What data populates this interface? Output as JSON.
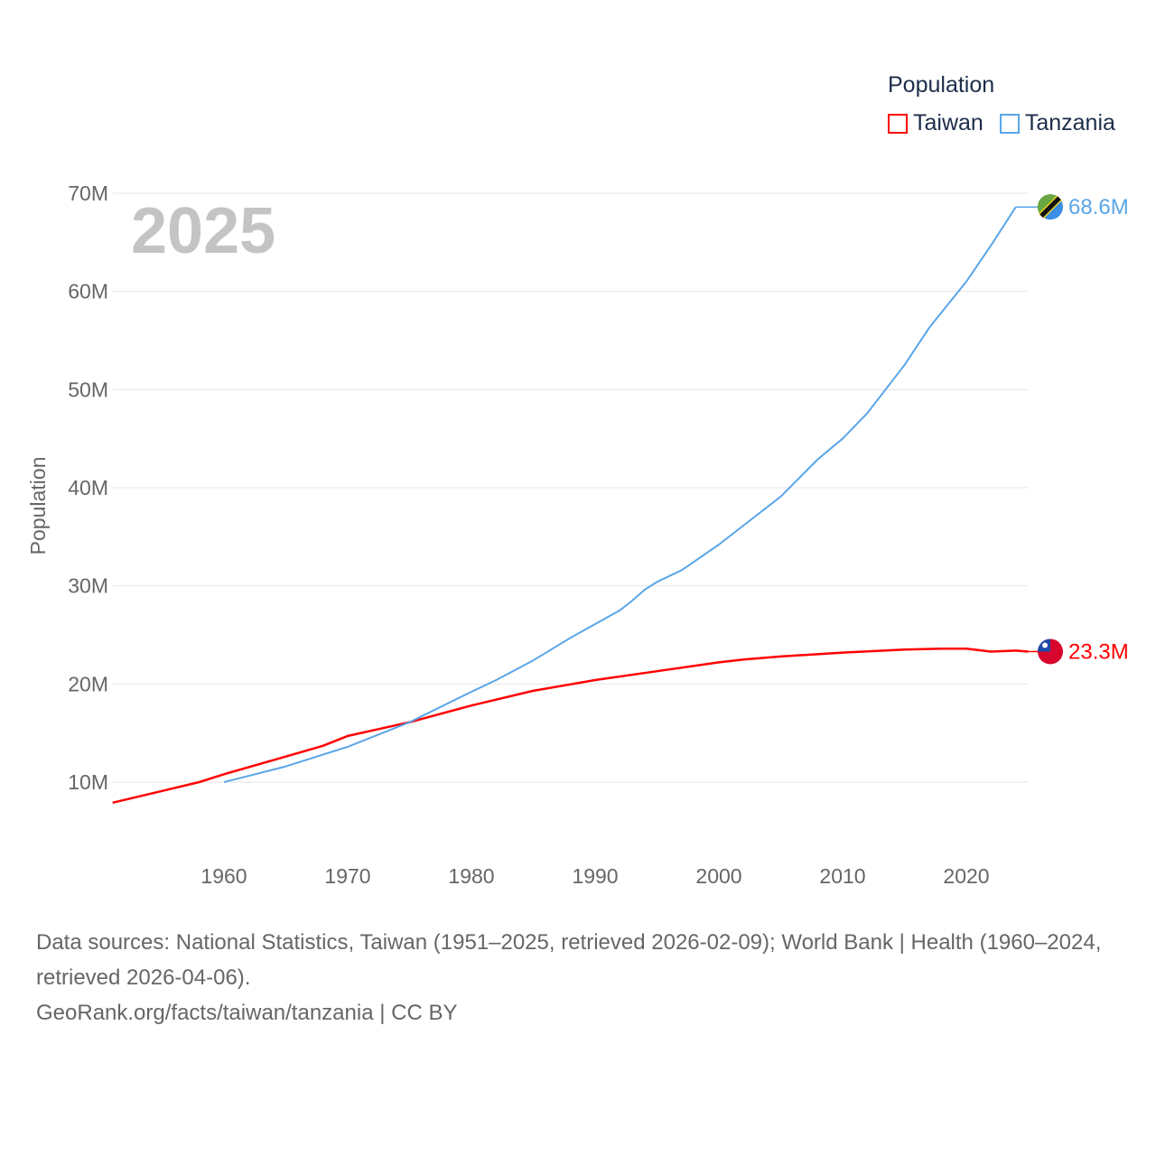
{
  "chart_data": {
    "type": "line",
    "title": "Population",
    "year_label": "2025",
    "ylabel": "Population",
    "xlabel": "",
    "ylim": [
      0,
      70000000
    ],
    "xlim": [
      1951,
      2025
    ],
    "x_ticks": [
      1960,
      1970,
      1980,
      1990,
      2000,
      2010,
      2020
    ],
    "x_tick_labels": [
      "1960",
      "1970",
      "1980",
      "1990",
      "2000",
      "2010",
      "2020"
    ],
    "y_ticks": [
      10,
      20,
      30,
      40,
      50,
      60,
      70
    ],
    "y_tick_labels": [
      "10M",
      "20M",
      "30M",
      "40M",
      "50M",
      "60M",
      "70M"
    ],
    "grid": true,
    "legend_placement": "top-right",
    "series": [
      {
        "name": "Taiwan",
        "color": "#ff0000",
        "end_label": "23.3M",
        "flag": "taiwan-flag",
        "x": [
          1951,
          1955,
          1958,
          1960,
          1965,
          1968,
          1970,
          1975,
          1980,
          1985,
          1990,
          1995,
          2000,
          2002,
          2005,
          2010,
          2015,
          2018,
          2020,
          2022,
          2024,
          2025
        ],
        "values": [
          7.9,
          9.1,
          10.0,
          10.8,
          12.6,
          13.7,
          14.7,
          16.1,
          17.8,
          19.3,
          20.4,
          21.3,
          22.2,
          22.5,
          22.8,
          23.2,
          23.5,
          23.6,
          23.6,
          23.3,
          23.4,
          23.3
        ]
      },
      {
        "name": "Tanzania",
        "color": "#5aa5e8",
        "end_label": "68.6M",
        "flag": "tanzania-flag",
        "x": [
          1960,
          1965,
          1970,
          1975,
          1980,
          1982,
          1985,
          1988,
          1990,
          1992,
          1993,
          1994,
          1995,
          1997,
          2000,
          2005,
          2008,
          2010,
          2012,
          2015,
          2017,
          2020,
          2022,
          2024
        ],
        "values": [
          10.0,
          11.6,
          13.6,
          16.1,
          19.2,
          20.4,
          22.4,
          24.7,
          26.1,
          27.5,
          28.5,
          29.6,
          30.4,
          31.6,
          34.2,
          39.1,
          42.9,
          45.0,
          47.6,
          52.5,
          56.3,
          61.0,
          64.7,
          68.6
        ]
      }
    ]
  },
  "footer": {
    "sources": "Data sources: National Statistics, Taiwan (1951–2025, retrieved 2026-02-09); World Bank | Health (1960–2024, retrieved 2026-04-06).",
    "link": "GeoRank.org/facts/taiwan/tanzania | CC BY"
  }
}
